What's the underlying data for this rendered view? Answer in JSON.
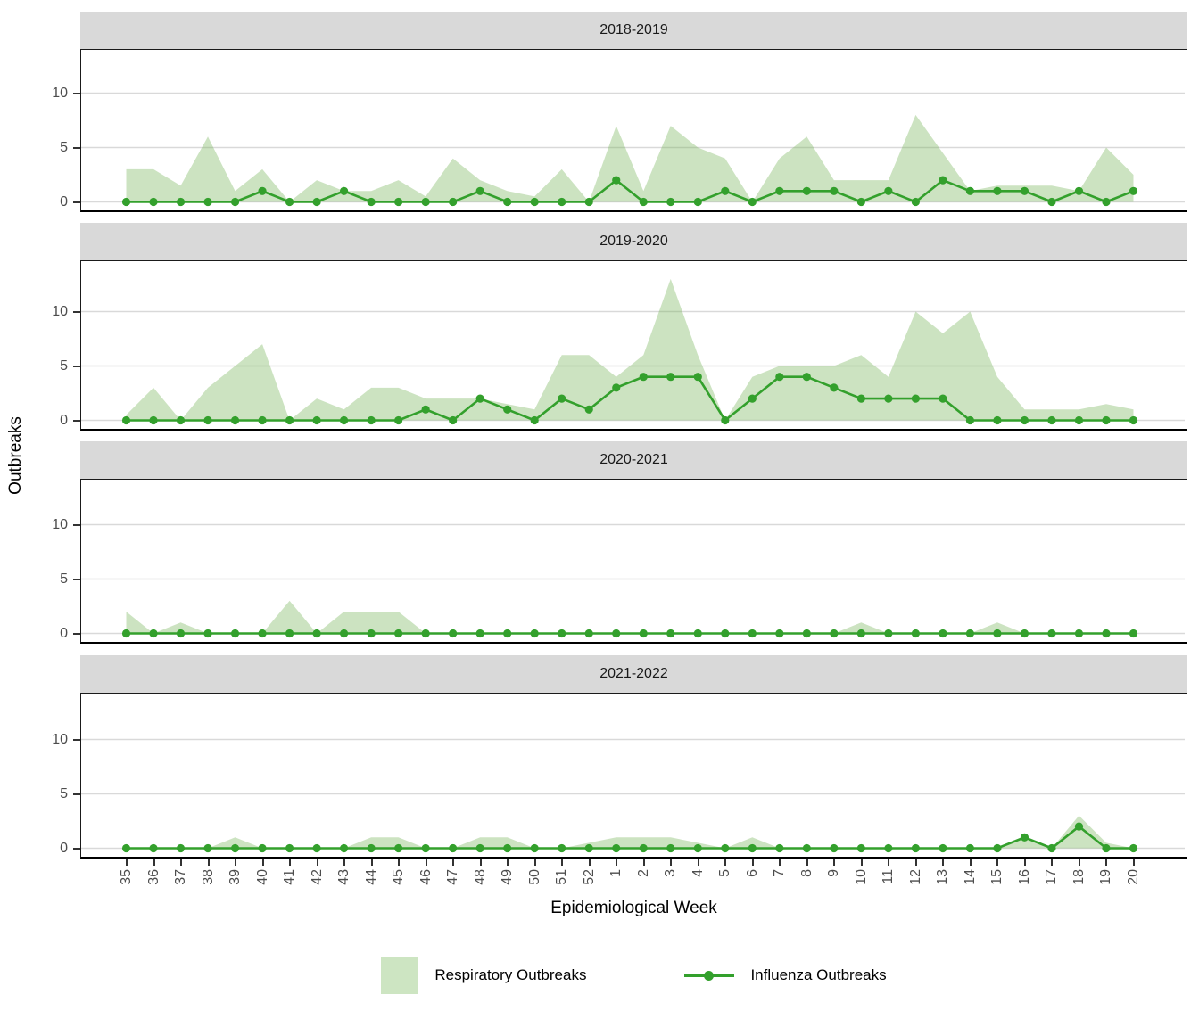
{
  "figure": {
    "x_axis_title": "Epidemiological Week",
    "y_axis_title": "Outbreaks",
    "legend": {
      "area_label": "Respiratory Outbreaks",
      "line_label": "Influenza Outbreaks"
    },
    "colors": {
      "area_fill": "#7ab55c",
      "area_fill_opacity": 0.38,
      "area_legend_swatch": "#cde5c2",
      "line": "#33a02c",
      "strip_background": "#d9d9d9",
      "gridline": "#d9d9d9",
      "axis_text": "#4d4d4d",
      "panel_border": "#000000"
    }
  },
  "chart_data": {
    "type": "area",
    "subtype": "faceted area + line with points (4 stacked season panels)",
    "xlabel": "Epidemiological Week",
    "ylabel": "Outbreaks",
    "y_ticks": [
      0,
      5,
      10
    ],
    "ylim": [
      0,
      13
    ],
    "grid": "horizontal major gridlines only at 0, 5, 10",
    "legend_position": "bottom",
    "categories": [
      "35",
      "36",
      "37",
      "38",
      "39",
      "40",
      "41",
      "42",
      "43",
      "44",
      "45",
      "46",
      "47",
      "48",
      "49",
      "50",
      "51",
      "52",
      "1",
      "2",
      "3",
      "4",
      "5",
      "6",
      "7",
      "8",
      "9",
      "10",
      "11",
      "12",
      "13",
      "14",
      "15",
      "16",
      "17",
      "18",
      "19",
      "20"
    ],
    "facets": [
      {
        "title": "2018-2019",
        "series": [
          {
            "name": "Respiratory Outbreaks",
            "type": "area",
            "values": [
              3,
              3,
              1.5,
              6,
              1,
              3,
              0,
              2,
              1,
              1,
              2,
              0.5,
              4,
              2,
              1,
              0.5,
              3,
              0,
              7,
              1,
              7,
              5,
              4,
              0,
              4,
              6,
              2,
              2,
              2,
              8,
              4.5,
              1,
              1.5,
              1.5,
              1.5,
              1,
              5,
              2.5
            ]
          },
          {
            "name": "Influenza Outbreaks",
            "type": "line",
            "values": [
              0,
              0,
              0,
              0,
              0,
              1,
              0,
              0,
              1,
              0,
              0,
              0,
              0,
              1,
              0,
              0,
              0,
              0,
              2,
              0,
              0,
              0,
              1,
              0,
              1,
              1,
              1,
              0,
              1,
              0,
              2,
              1,
              1,
              1,
              0,
              1,
              0,
              1
            ]
          }
        ]
      },
      {
        "title": "2019-2020",
        "series": [
          {
            "name": "Respiratory Outbreaks",
            "type": "area",
            "values": [
              0.5,
              3,
              0,
              3,
              5,
              7,
              0,
              2,
              1,
              3,
              3,
              2,
              2,
              2,
              1.5,
              1,
              6,
              6,
              4,
              6,
              13,
              6,
              0,
              4,
              5,
              5,
              5,
              6,
              4,
              10,
              8,
              10,
              4,
              1,
              1,
              1,
              1.5,
              1
            ]
          },
          {
            "name": "Influenza Outbreaks",
            "type": "line",
            "values": [
              0,
              0,
              0,
              0,
              0,
              0,
              0,
              0,
              0,
              0,
              0,
              1,
              0,
              2,
              1,
              0,
              2,
              1,
              3,
              4,
              4,
              4,
              0,
              2,
              4,
              4,
              3,
              2,
              2,
              2,
              2,
              0,
              0,
              0,
              0,
              0,
              0,
              0
            ]
          }
        ]
      },
      {
        "title": "2020-2021",
        "series": [
          {
            "name": "Respiratory Outbreaks",
            "type": "area",
            "values": [
              2,
              0,
              1,
              0,
              0,
              0,
              3,
              0,
              2,
              2,
              2,
              0,
              0,
              0,
              0,
              0,
              0,
              0,
              0,
              0,
              0,
              0,
              0,
              0,
              0,
              0,
              0,
              1,
              0,
              0,
              0,
              0,
              1,
              0,
              0,
              0,
              0,
              0
            ]
          },
          {
            "name": "Influenza Outbreaks",
            "type": "line",
            "values": [
              0,
              0,
              0,
              0,
              0,
              0,
              0,
              0,
              0,
              0,
              0,
              0,
              0,
              0,
              0,
              0,
              0,
              0,
              0,
              0,
              0,
              0,
              0,
              0,
              0,
              0,
              0,
              0,
              0,
              0,
              0,
              0,
              0,
              0,
              0,
              0,
              0,
              0
            ]
          }
        ]
      },
      {
        "title": "2021-2022",
        "series": [
          {
            "name": "Respiratory Outbreaks",
            "type": "area",
            "values": [
              0,
              0,
              0,
              0,
              1,
              0,
              0,
              0,
              0,
              1,
              1,
              0,
              0,
              1,
              1,
              0,
              0,
              0.5,
              1,
              1,
              1,
              0.5,
              0,
              1,
              0,
              0,
              0,
              0,
              0,
              0,
              0,
              0,
              0,
              1,
              0,
              3,
              0.5,
              0
            ]
          },
          {
            "name": "Influenza Outbreaks",
            "type": "line",
            "values": [
              0,
              0,
              0,
              0,
              0,
              0,
              0,
              0,
              0,
              0,
              0,
              0,
              0,
              0,
              0,
              0,
              0,
              0,
              0,
              0,
              0,
              0,
              0,
              0,
              0,
              0,
              0,
              0,
              0,
              0,
              0,
              0,
              0,
              1,
              0,
              2,
              0,
              0
            ]
          }
        ]
      }
    ]
  }
}
